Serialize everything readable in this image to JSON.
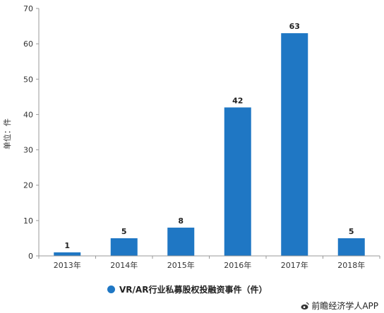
{
  "chart_data": {
    "type": "bar",
    "categories": [
      "2013年",
      "2014年",
      "2015年",
      "2016年",
      "2017年",
      "2018年"
    ],
    "series": [
      {
        "name": "VR/AR行业私募股权投融资事件（件）",
        "values": [
          1,
          5,
          8,
          42,
          63,
          5
        ],
        "color": "#1f77c4"
      }
    ],
    "ylabel": "单位：件",
    "ylim": [
      0,
      70
    ],
    "yticks": [
      0,
      10,
      20,
      30,
      40,
      50,
      60,
      70
    ],
    "grid": false,
    "legend_position": "bottom"
  },
  "credit": {
    "icon": "weibo-icon",
    "text": "前瞻经济学人APP"
  }
}
